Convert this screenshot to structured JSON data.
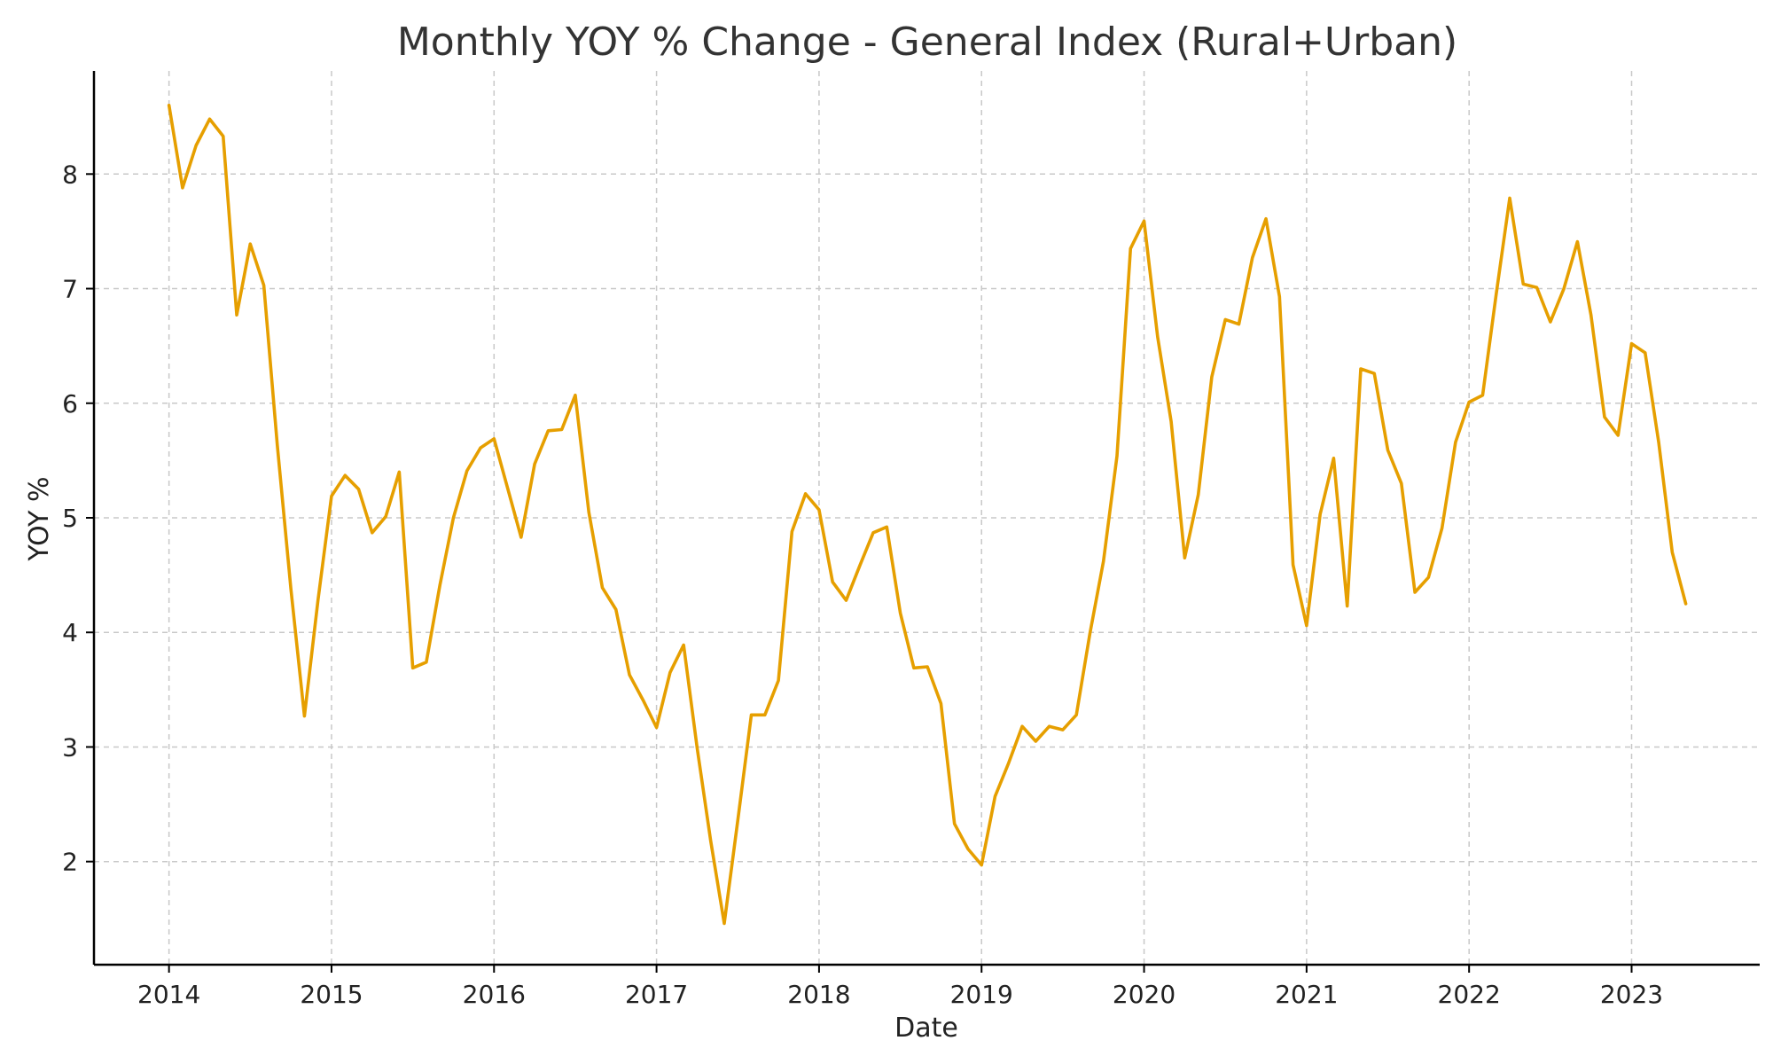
{
  "chart_data": {
    "type": "line",
    "title": "Monthly YOY % Change - General Index (Rural+Urban)",
    "xlabel": "Date",
    "ylabel": "YOY %",
    "x_ticks": [
      "2014",
      "2015",
      "2016",
      "2017",
      "2018",
      "2019",
      "2020",
      "2021",
      "2022",
      "2023"
    ],
    "y_ticks": [
      2,
      3,
      4,
      5,
      6,
      7,
      8
    ],
    "xlim": [
      "2013-07-15",
      "2023-10-15"
    ],
    "ylim": [
      1.1,
      8.9
    ],
    "grid": true,
    "colors": {
      "line": "#E69F00",
      "grid": "#c8c8c8",
      "axis": "#000000"
    },
    "x": [
      "2014-01",
      "2014-02",
      "2014-03",
      "2014-04",
      "2014-05",
      "2014-06",
      "2014-07",
      "2014-08",
      "2014-09",
      "2014-10",
      "2014-11",
      "2014-12",
      "2015-01",
      "2015-02",
      "2015-03",
      "2015-04",
      "2015-05",
      "2015-06",
      "2015-07",
      "2015-08",
      "2015-09",
      "2015-10",
      "2015-11",
      "2015-12",
      "2016-01",
      "2016-02",
      "2016-03",
      "2016-04",
      "2016-05",
      "2016-06",
      "2016-07",
      "2016-08",
      "2016-09",
      "2016-10",
      "2016-11",
      "2016-12",
      "2017-01",
      "2017-02",
      "2017-03",
      "2017-04",
      "2017-05",
      "2017-06",
      "2017-07",
      "2017-08",
      "2017-09",
      "2017-10",
      "2017-11",
      "2017-12",
      "2018-01",
      "2018-02",
      "2018-03",
      "2018-04",
      "2018-05",
      "2018-06",
      "2018-07",
      "2018-08",
      "2018-09",
      "2018-10",
      "2018-11",
      "2018-12",
      "2019-01",
      "2019-02",
      "2019-03",
      "2019-04",
      "2019-05",
      "2019-06",
      "2019-07",
      "2019-08",
      "2019-09",
      "2019-10",
      "2019-11",
      "2019-12",
      "2020-01",
      "2020-02",
      "2020-03",
      "2020-04",
      "2020-05",
      "2020-06",
      "2020-07",
      "2020-08",
      "2020-09",
      "2020-10",
      "2020-11",
      "2020-12",
      "2021-01",
      "2021-02",
      "2021-03",
      "2021-04",
      "2021-05",
      "2021-06",
      "2021-07",
      "2021-08",
      "2021-09",
      "2021-10",
      "2021-11",
      "2021-12",
      "2022-01",
      "2022-02",
      "2022-03",
      "2022-04",
      "2022-05",
      "2022-06",
      "2022-07",
      "2022-08",
      "2022-09",
      "2022-10",
      "2022-11",
      "2022-12",
      "2023-01",
      "2023-02",
      "2023-03",
      "2023-04",
      "2023-05"
    ],
    "series": [
      {
        "values": [
          8.6,
          7.88,
          8.25,
          8.48,
          8.33,
          6.77,
          7.39,
          7.03,
          5.63,
          4.38,
          3.27,
          4.28,
          5.19,
          5.37,
          5.25,
          4.87,
          5.01,
          5.4,
          3.69,
          3.74,
          4.41,
          5.0,
          5.41,
          5.61,
          5.69,
          5.26,
          4.83,
          5.47,
          5.76,
          5.77,
          6.07,
          5.05,
          4.39,
          4.2,
          3.63,
          3.41,
          3.17,
          3.65,
          3.89,
          2.99,
          2.18,
          1.46,
          2.36,
          3.28,
          3.28,
          3.58,
          4.88,
          5.21,
          5.07,
          4.44,
          4.28,
          4.58,
          4.87,
          4.92,
          4.17,
          3.69,
          3.7,
          3.38,
          2.33,
          2.11,
          1.97,
          2.57,
          2.86,
          3.18,
          3.05,
          3.18,
          3.15,
          3.28,
          3.99,
          4.62,
          5.54,
          7.35,
          7.59,
          6.58,
          5.84,
          4.65,
          5.2,
          6.23,
          6.73,
          6.69,
          7.27,
          7.61,
          6.93,
          4.59,
          4.06,
          5.03,
          5.52,
          4.23,
          6.3,
          6.26,
          5.59,
          5.3,
          4.35,
          4.48,
          4.91,
          5.66,
          6.01,
          6.07,
          6.95,
          7.79,
          7.04,
          7.01,
          6.71,
          7.0,
          7.41,
          6.77,
          5.88,
          5.72,
          6.52,
          6.44,
          5.66,
          4.7,
          4.25
        ]
      }
    ]
  }
}
